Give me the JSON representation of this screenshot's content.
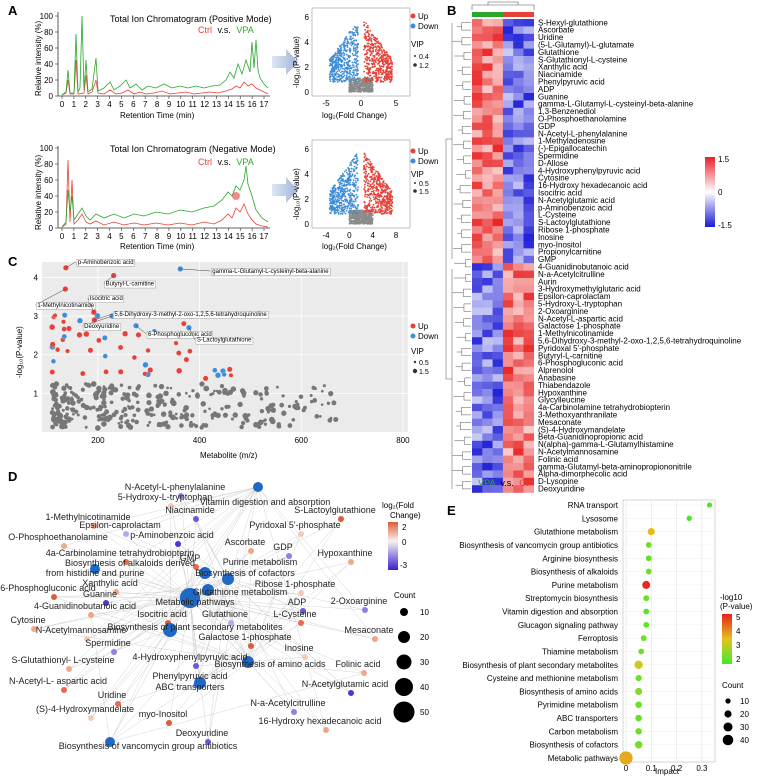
{
  "panels": {
    "A": {
      "label": "A",
      "tic": [
        {
          "title": "Total Ion Chromatogram (Positive Mode)",
          "ctrl": "Ctrl",
          "vs": "v.s.",
          "vpa": "VPA",
          "ylabel": "Relative intensity (%)",
          "xlabel": "Retention Time (min)",
          "xticks": [
            "0",
            "1",
            "2",
            "3",
            "4",
            "5",
            "6",
            "7",
            "8",
            "9",
            "10",
            "11",
            "12",
            "13",
            "14",
            "15",
            "16",
            "17"
          ],
          "yticks": [
            "0",
            "20",
            "40",
            "60",
            "80",
            "100"
          ]
        },
        {
          "title": "Total Ion Chromatogram  (Negative Mode)",
          "ctrl": "Ctrl",
          "vs": "v.s.",
          "vpa": "VPA",
          "ylabel": "Relative intensity (%)",
          "xlabel": "Retention Time (min)",
          "xticks": [
            "0",
            "1",
            "2",
            "3",
            "4",
            "5",
            "6",
            "7",
            "8",
            "9",
            "10",
            "11",
            "12",
            "13",
            "14",
            "15",
            "16",
            "17"
          ],
          "yticks": [
            "0",
            "20",
            "40",
            "60",
            "80",
            "100"
          ]
        }
      ],
      "volcano": [
        {
          "xlabel": "log₂(Fold Change)",
          "ylabel": "-log₁₀(P-value)",
          "xticks": [
            "-5",
            "0",
            "5"
          ],
          "yticks": [
            "0",
            "2",
            "4",
            "6"
          ],
          "legend": {
            "up": "Up",
            "down": "Down",
            "vip": "VIP",
            "vip_values": [
              "0.4",
              "1.2"
            ]
          }
        },
        {
          "xlabel": "log₂(Fold Change)",
          "ylabel": "-log₁₀(P-value)",
          "xticks": [
            "-4",
            "0",
            "4",
            "8"
          ],
          "yticks": [
            "0",
            "2",
            "4",
            "6"
          ],
          "legend": {
            "up": "Up",
            "down": "Down",
            "vip": "VIP",
            "vip_values": [
              "0.5",
              "1.5"
            ]
          }
        }
      ]
    },
    "B": {
      "label": "B",
      "legend": {
        "max": "1.5",
        "mid": "0",
        "min": "-1.5"
      },
      "groups": {
        "vpa": "VPA",
        "vs": "v.s.",
        "ctrl": "Ctrl"
      },
      "rows": [
        "S-Hexyl-glutathione",
        "Ascorbate",
        "Uridine",
        "(5-L-Glutamyl)-L-glutamate",
        "Glutathione",
        "S-Glutathionyl-L-cysteine",
        "Xanthylic acid",
        "Niacinamide",
        "Phenylpyruvic acid",
        "ADP",
        "Guanine",
        "gamma-L-Glutamyl-L-cysteinyl-beta-alanine",
        "1,3-Benzenediol",
        "O-Phosphoethanolamine",
        "GDP",
        "N-Acetyl-L-phenylalanine",
        "1-Methyladenosine",
        "(-)-Epigallocatechin",
        "Spermidine",
        "D-Allose",
        "4-Hydroxyphenylpyruvic acid",
        "Cytosine",
        "16-Hydroxy hexadecanoic acid",
        "Isocitric acid",
        "N-Acetylglutamic acid",
        "p-Aminobenzoic acid",
        "L-Cysteine",
        "S-Lactoylglutathione",
        "Ribose 1-phosphate",
        "Inosine",
        "myo-Inositol",
        "Propionylcarnitine",
        "GMP",
        "4-Guanidinobutanoic acid",
        "N-a-Acetylcitrulline",
        "Aurin",
        "3-Hydroxymethylglutaric acid",
        "Epsilon-caprolactam",
        "5-Hydroxy-L-tryptophan",
        "2-Oxoarginine",
        "N-Acetyl-L-aspartic acid",
        "Galactose 1-phosphate",
        "1-Methylnicotinamide",
        "5,6-Dihydroxy-3-methyl-2-oxo-1,2,5,6-tetrahydroquinoline",
        "Pyridoxal 5'-phosphate",
        "Butyryl-L-carnitine",
        "6-Phosphogluconic acid",
        "Alprenolol",
        "Anabasine",
        "Thiabendazole",
        "Hypoxanthine",
        "Glycylleucine",
        "4a-Carbinolamine tetrahydrobiopterin",
        "3-Methoxyanthranilate",
        "Mesaconate",
        "(S)-4-Hydroxymandelate",
        "Beta-Guanidinopropionic acid",
        "N(alpha)-gamma-L-Glutamylhistamine",
        "N-Acetylmannosamine",
        "Folinic acid",
        "gamma-Glutamyl-beta-aminopropiononitrile",
        "Alpha-dimorphecolic acid",
        "D-Lysopine",
        "Deoxyuridine"
      ]
    },
    "C": {
      "label": "C",
      "xlabel": "Metabolite (m/z)",
      "ylabel": "-log₁₀(P-value)",
      "xticks": [
        "200",
        "400",
        "600",
        "800"
      ],
      "yticks": [
        "1",
        "2",
        "3",
        "4"
      ],
      "legend": {
        "up": "Up",
        "down": "Down",
        "vip": "VIP",
        "vip_values": [
          "0.5",
          "1.5"
        ]
      },
      "labels": [
        "p-Aminobenzoic acid",
        "gamma-L-Glutamyl-L-cysteinyl-beta-alanine",
        "Butyryl-L-carnitine",
        "1-Methylnicotinamide",
        "Isocitric acid",
        "5,6-Dihydroxy-3-methyl-2-oxo-1,2,5,6-tetrahydroquinoline",
        "Deoxyuridine",
        "6-Phosphogluconic acid",
        "S-Lactoylglutathione"
      ]
    },
    "D": {
      "label": "D",
      "legend": {
        "fc_title": "log₂(Fold",
        "fc_title2": "Change)",
        "fc_ticks": [
          "2",
          "0",
          "-3"
        ],
        "count_title": "Count",
        "count_values": [
          "10",
          "20",
          "30",
          "40",
          "50"
        ]
      },
      "nodes": [
        {
          "name": "N-Acetyl-L-phenylalanine"
        },
        {
          "name": "Vitamin digestion and absorption"
        },
        {
          "name": "5-Hydroxy-L-tryptophan"
        },
        {
          "name": "Niacinamide"
        },
        {
          "name": "S-Lactoylglutathione"
        },
        {
          "name": "1-Methylnicotinamide"
        },
        {
          "name": "Epsilon-caprolactam"
        },
        {
          "name": "Pyridoxal 5'-phosphate"
        },
        {
          "name": "O-Phosphoethanolamine"
        },
        {
          "name": "p-Aminobenzoic acid"
        },
        {
          "name": "Ascorbate"
        },
        {
          "name": "4a-Carbinolamine tetrahydrobiopterin"
        },
        {
          "name": "GDP"
        },
        {
          "name": "Hypoxanthine"
        },
        {
          "name": "Biosynthesis of alkaloids derived"
        },
        {
          "name": "from histidine and purine"
        },
        {
          "name": "GMP"
        },
        {
          "name": "Purine metabolism"
        },
        {
          "name": "Biosynthesis of cofactors"
        },
        {
          "name": "6-Phosphogluconic acid"
        },
        {
          "name": "Xanthylic acid"
        },
        {
          "name": "Guanine"
        },
        {
          "name": "Ribose 1-phosphate"
        },
        {
          "name": "Glutathione metabolism"
        },
        {
          "name": "2-Oxoarginine"
        },
        {
          "name": "4-Guanidinobutanoic acid"
        },
        {
          "name": "Metabolic pathways"
        },
        {
          "name": "ADP"
        },
        {
          "name": "Cytosine"
        },
        {
          "name": "Isocitric acid"
        },
        {
          "name": "Glutathione"
        },
        {
          "name": "L-Cysteine"
        },
        {
          "name": "N-Acetylmannosamine"
        },
        {
          "name": "Biosynthesis of plant secondary metabolites"
        },
        {
          "name": "Galactose 1-phosphate"
        },
        {
          "name": "Mesaconate"
        },
        {
          "name": "Spermidine"
        },
        {
          "name": "Inosine"
        },
        {
          "name": "S-Glutathionyl- L-cysteine"
        },
        {
          "name": "4-Hydroxyphenylpyruvic acid"
        },
        {
          "name": "Biosynthesis of amino acids"
        },
        {
          "name": "N-Acetyl-L- aspartic acid"
        },
        {
          "name": "Phenylpyruvic acid"
        },
        {
          "name": "Folinic acid"
        },
        {
          "name": "ABC transporters"
        },
        {
          "name": "N-Acetylglutamic acid"
        },
        {
          "name": "Uridine"
        },
        {
          "name": "(S)-4-Hydroxymandelate"
        },
        {
          "name": "N-a-Acetylcitrulline"
        },
        {
          "name": "myo-Inositol"
        },
        {
          "name": "16-Hydroxy hexadecanoic acid"
        },
        {
          "name": "Deoxyuridine"
        },
        {
          "name": "Biosynthesis of vancomycin group antibiotics"
        }
      ]
    },
    "E": {
      "label": "E",
      "xlabel": "Impact",
      "xticks": [
        "0",
        "0.1",
        "0.2",
        "0.3"
      ],
      "legend": {
        "color_title": "-log10",
        "color_title2": "(P-value)",
        "color_ticks": [
          "5",
          "4",
          "3",
          "2"
        ],
        "count_title": "Count",
        "count_values": [
          "10",
          "20",
          "30",
          "40"
        ]
      }
    }
  },
  "chart_data": [
    {
      "panel": "E",
      "type": "scatter",
      "xlabel": "Impact",
      "xlim": [
        0,
        0.34
      ],
      "categories": [
        "RNA transport",
        "Lysosome",
        "Glutathione metabolism",
        "Biosynthesis of vancomycin group antibiotics",
        "Arginine biosynthesis",
        "Biosynthesis of alkaloids",
        "Purine metabolism",
        "Streptomycin biosynthesis",
        "Vitamin digestion and absorption",
        "Glucagon signaling pathway",
        "Ferroptosis",
        "Thiamine metabolism",
        "Biosynthesis of plant secondary metabolites",
        "Cysteine and methionine metabolism",
        "Biosynthesis of amino acids",
        "Pyrimidine metabolism",
        "ABC transporters",
        "Carbon metabolism",
        "Biosynthesis of cofactors",
        "Metabolic pathways"
      ],
      "impact": [
        0.33,
        0.25,
        0.1,
        0.09,
        0.09,
        0.09,
        0.08,
        0.08,
        0.08,
        0.08,
        0.07,
        0.06,
        0.05,
        0.05,
        0.05,
        0.05,
        0.05,
        0.05,
        0.05,
        0.0
      ],
      "neglog10p": [
        1.7,
        1.6,
        3.6,
        2.1,
        1.8,
        2.0,
        5.4,
        2.0,
        1.8,
        1.9,
        2.0,
        2.0,
        3.3,
        2.0,
        2.4,
        2.0,
        1.9,
        2.0,
        2.1,
        3.8
      ],
      "count": [
        2,
        2,
        7,
        3,
        3,
        3,
        10,
        3,
        3,
        3,
        3,
        3,
        12,
        4,
        7,
        5,
        5,
        5,
        8,
        45
      ]
    },
    {
      "panel": "C",
      "type": "scatter",
      "xlabel": "Metabolite (m/z)",
      "ylabel": "-log10(P-value)",
      "xlim": [
        90,
        810
      ],
      "ylim": [
        0,
        4.4
      ],
      "points": [
        {
          "label": "p-Aminobenzoic acid",
          "x": 137,
          "y": 4.25,
          "status": "up",
          "vip": 1.3
        },
        {
          "label": "gamma-L-Glutamyl-L-cysteinyl-beta-alanine",
          "x": 362,
          "y": 4.22,
          "status": "down",
          "vip": 1.2
        },
        {
          "label": "Butyryl-L-carnitine",
          "x": 231,
          "y": 4.05,
          "status": "up",
          "vip": 1.3
        },
        {
          "label": "1-Methylnicotinamide",
          "x": 136,
          "y": 3.7,
          "status": "up",
          "vip": 1.2
        },
        {
          "label": "Isocitric acid",
          "x": 192,
          "y": 3.1,
          "status": "up",
          "vip": 1.2
        },
        {
          "label": "5,6-Dihydroxy-3-methyl-2-oxo-1,2,5,6-tetrahydroquinoline",
          "x": 193,
          "y": 2.9,
          "status": "up",
          "vip": 1.1
        },
        {
          "label": "Deoxyuridine",
          "x": 228,
          "y": 3.0,
          "status": "down",
          "vip": 1.1
        },
        {
          "label": "6-Phosphogluconic acid",
          "x": 275,
          "y": 2.75,
          "status": "down",
          "vip": 1.2
        },
        {
          "label": "S-Lactoylglutathione",
          "x": 379,
          "y": 2.7,
          "status": "down",
          "vip": 1.1
        }
      ]
    }
  ]
}
